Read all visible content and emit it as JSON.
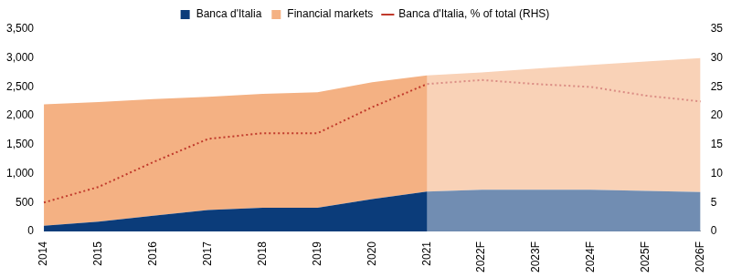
{
  "chart_data": {
    "type": "area",
    "categories": [
      "2014",
      "2015",
      "2016",
      "2017",
      "2018",
      "2019",
      "2020",
      "2021",
      "2022F",
      "2023F",
      "2024F",
      "2025F",
      "2026F"
    ],
    "series": [
      {
        "name": "Banca d'Italia",
        "color": "#0b3c7a",
        "type": "area",
        "values": [
          100,
          170,
          270,
          370,
          410,
          410,
          560,
          690,
          720,
          720,
          720,
          700,
          680
        ]
      },
      {
        "name": "Financial markets",
        "color": "#f4b183",
        "type": "area",
        "values": [
          2100,
          2070,
          2020,
          1960,
          1970,
          2000,
          2020,
          2010,
          2030,
          2100,
          2160,
          2240,
          2320
        ]
      },
      {
        "name": "Banca d'Italia, % of total (RHS)",
        "color": "#c0392b",
        "type": "line",
        "line_style": "dotted",
        "axis": "y2",
        "values": [
          5,
          7.7,
          12,
          16,
          17,
          17,
          21.5,
          25.5,
          26.2,
          25.5,
          25,
          23.5,
          22.5
        ]
      }
    ],
    "stacked": true,
    "ylim": [
      0,
      3500
    ],
    "yticks": [
      0,
      {
        "value": 500,
        "label": "500"
      },
      {
        "value": 1000,
        "label": "1,000"
      },
      {
        "value": 1500,
        "label": "1,500"
      },
      {
        "value": 2000,
        "label": "2,000"
      },
      {
        "value": 2500,
        "label": "2,500"
      },
      {
        "value": 3000,
        "label": "3,000"
      },
      {
        "value": 3500,
        "label": "3,500"
      }
    ],
    "y2lim": [
      0,
      35
    ],
    "y2ticks": [
      0,
      5,
      10,
      15,
      20,
      25,
      30,
      35
    ],
    "grid": false,
    "legend": "top"
  }
}
